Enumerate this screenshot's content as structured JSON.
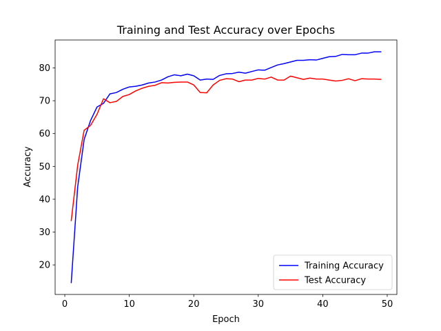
{
  "chart_data": {
    "type": "line",
    "title": "Training and Test Accuracy over Epochs",
    "xlabel": "Epoch",
    "ylabel": "Accuracy",
    "xlim": [
      -1.5,
      51.5
    ],
    "ylim": [
      11.0,
      88.5
    ],
    "xticks": [
      0,
      10,
      20,
      30,
      40,
      50
    ],
    "yticks": [
      20,
      30,
      40,
      50,
      60,
      70,
      80
    ],
    "grid": false,
    "legend_position": "lower-right",
    "x": [
      1,
      2,
      3,
      4,
      5,
      6,
      7,
      8,
      9,
      10,
      11,
      12,
      13,
      14,
      15,
      16,
      17,
      18,
      19,
      20,
      21,
      22,
      23,
      24,
      25,
      26,
      27,
      28,
      29,
      30,
      31,
      32,
      33,
      34,
      35,
      36,
      37,
      38,
      39,
      40,
      41,
      42,
      43,
      44,
      45,
      46,
      47,
      48,
      49
    ],
    "series": [
      {
        "name": "Training Accuracy",
        "color": "#0000ff",
        "values": [
          14.6,
          43.8,
          58.2,
          64.0,
          68.1,
          69.2,
          72.1,
          72.5,
          73.5,
          74.2,
          74.4,
          74.8,
          75.4,
          75.7,
          76.3,
          77.3,
          77.9,
          77.6,
          78.1,
          77.6,
          76.3,
          76.6,
          76.5,
          77.7,
          78.2,
          78.3,
          78.7,
          78.4,
          78.9,
          79.4,
          79.3,
          80.1,
          80.9,
          81.3,
          81.8,
          82.3,
          82.3,
          82.5,
          82.4,
          82.9,
          83.4,
          83.5,
          84.1,
          84.0,
          84.0,
          84.5,
          84.5,
          84.9,
          84.9
        ]
      },
      {
        "name": "Test Accuracy",
        "color": "#ff0000",
        "values": [
          33.5,
          50.4,
          61.0,
          62.5,
          65.9,
          70.6,
          69.4,
          69.8,
          71.3,
          71.9,
          73.0,
          73.8,
          74.4,
          74.7,
          75.5,
          75.4,
          75.6,
          75.7,
          75.7,
          74.8,
          72.5,
          72.4,
          74.8,
          76.2,
          76.7,
          76.6,
          75.8,
          76.3,
          76.3,
          76.8,
          76.6,
          77.2,
          76.3,
          76.3,
          77.5,
          77.0,
          76.5,
          76.9,
          76.6,
          76.6,
          76.3,
          76.0,
          76.2,
          76.7,
          76.1,
          76.7,
          76.6,
          76.6,
          76.5
        ]
      }
    ]
  }
}
